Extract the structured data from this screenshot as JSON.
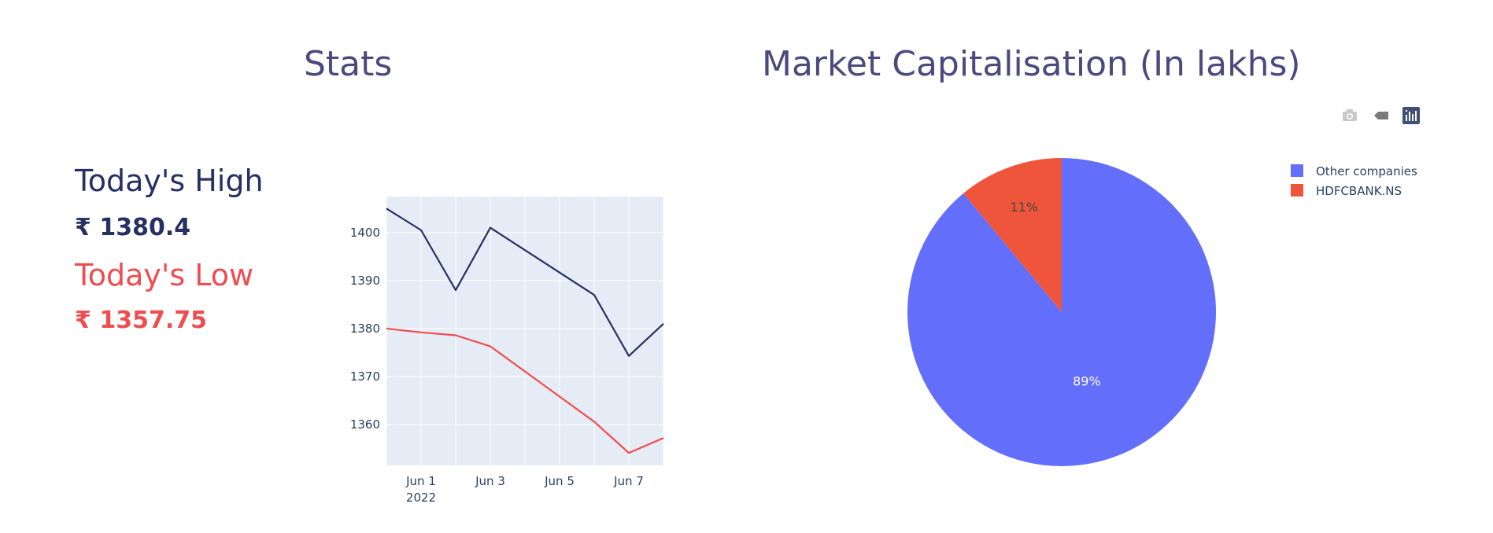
{
  "stats": {
    "title": "Stats",
    "high_label": "Today's High",
    "high_value": "₹ 1380.4",
    "low_label": "Today's Low",
    "low_value": "₹ 1357.75",
    "high_color": "#263063",
    "low_color": "#ef4d4f"
  },
  "market": {
    "title": "Market Capitalisation (In lakhs)"
  },
  "modebar": {
    "icons": [
      "camera-icon",
      "tag-icon",
      "plotly-logo-icon"
    ]
  },
  "chart_data": [
    {
      "type": "line",
      "title": "",
      "xlabel": "",
      "ylabel": "",
      "x": [
        "2022-05-31",
        "2022-06-01",
        "2022-06-02",
        "2022-06-03",
        "2022-06-06",
        "2022-06-07",
        "2022-06-08"
      ],
      "x_tick_labels": [
        "Jun 1",
        "Jun 3",
        "Jun 5",
        "Jun 7"
      ],
      "x_tick_year": "2022",
      "y_ticks": [
        1360,
        1370,
        1380,
        1390,
        1400
      ],
      "ylim": [
        1351.5,
        1407.5
      ],
      "grid": true,
      "background": "#e5ecf6",
      "series": [
        {
          "values": [
            1405,
            1400.5,
            1388,
            1401,
            1387,
            1374.3,
            1381
          ],
          "color": "#263063"
        },
        {
          "values": [
            1380,
            1379.2,
            1378.6,
            1376.3,
            1360.6,
            1354.1,
            1357.2
          ],
          "color": "#ef4d4f"
        }
      ]
    },
    {
      "type": "pie",
      "title": "",
      "legend_position": "top-right",
      "slices": [
        {
          "label": "Other companies",
          "value": 89,
          "text": "89%",
          "color": "#636efa"
        },
        {
          "label": "HDFCBANK.NS",
          "value": 11,
          "text": "11%",
          "color": "#ef553b"
        }
      ]
    }
  ]
}
